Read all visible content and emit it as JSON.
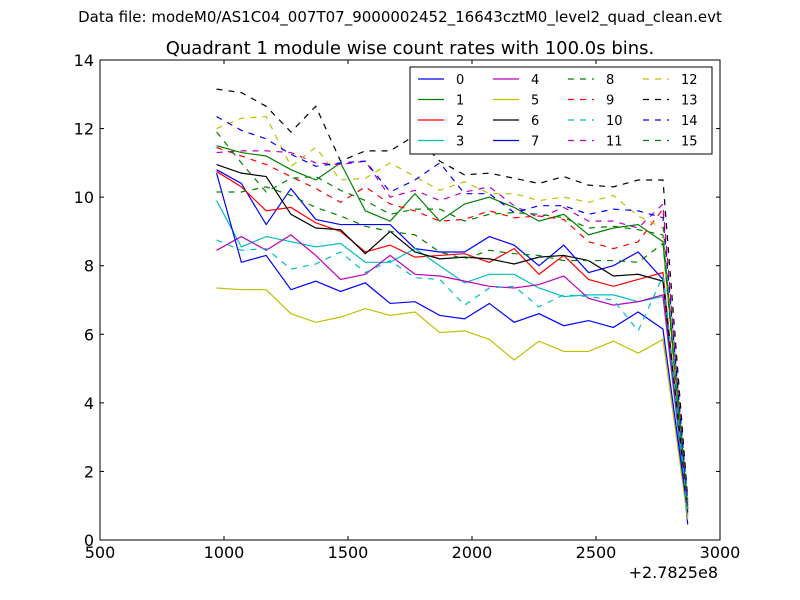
{
  "suptitle": "Data file: modeM0/AS1C04_007T07_9000002452_16643cztM0_level2_quad_clean.evt",
  "chart_data": {
    "type": "line",
    "title": "Quadrant 1 module wise count rates with 100.0s bins.",
    "xlabel": "",
    "ylabel": "",
    "offset_label": "+2.7825e8",
    "xlim": [
      500,
      3000
    ],
    "ylim": [
      0,
      14
    ],
    "xticks": [
      500,
      1000,
      1500,
      2000,
      2500,
      3000
    ],
    "yticks": [
      0,
      2,
      4,
      6,
      8,
      10,
      12,
      14
    ],
    "legend_position": "top-right",
    "legend_columns": 4,
    "x": [
      970,
      1070,
      1170,
      1270,
      1370,
      1470,
      1570,
      1670,
      1770,
      1870,
      1970,
      2070,
      2170,
      2270,
      2370,
      2470,
      2570,
      2670,
      2770,
      2870
    ],
    "series": [
      {
        "name": "0",
        "color": "#0000ff",
        "dash": "solid",
        "values": [
          10.8,
          10.4,
          9.2,
          10.25,
          9.35,
          9.2,
          9.2,
          9.2,
          8.5,
          8.4,
          8.4,
          8.85,
          8.6,
          8.0,
          8.6,
          7.8,
          8.0,
          8.4,
          7.6,
          0.45
        ]
      },
      {
        "name": "1",
        "color": "#008000",
        "dash": "solid",
        "values": [
          11.5,
          11.3,
          11.2,
          10.8,
          10.5,
          11.0,
          9.6,
          9.3,
          10.1,
          9.3,
          9.8,
          10.0,
          9.7,
          9.3,
          9.5,
          8.9,
          9.1,
          9.2,
          8.7,
          0.9
        ]
      },
      {
        "name": "2",
        "color": "#ff0000",
        "dash": "solid",
        "values": [
          10.75,
          10.3,
          9.6,
          9.7,
          9.25,
          9.0,
          8.4,
          8.6,
          8.25,
          8.3,
          8.35,
          8.1,
          8.5,
          7.75,
          8.3,
          7.6,
          7.4,
          7.6,
          7.8,
          0.8
        ]
      },
      {
        "name": "3",
        "color": "#00bfbf",
        "dash": "solid",
        "values": [
          9.9,
          8.55,
          8.85,
          8.7,
          8.55,
          8.65,
          8.1,
          8.1,
          8.5,
          8.0,
          7.5,
          7.75,
          7.75,
          7.35,
          7.1,
          7.15,
          7.15,
          6.95,
          7.1,
          0.7
        ]
      },
      {
        "name": "4",
        "color": "#bf00bf",
        "dash": "solid",
        "values": [
          8.45,
          8.85,
          8.45,
          8.9,
          8.3,
          7.6,
          7.75,
          8.3,
          7.75,
          7.7,
          7.55,
          7.4,
          7.35,
          7.45,
          7.7,
          7.05,
          6.85,
          6.95,
          7.15,
          0.9
        ]
      },
      {
        "name": "5",
        "color": "#bfbf00",
        "dash": "solid",
        "values": [
          7.35,
          7.3,
          7.3,
          6.6,
          6.35,
          6.5,
          6.75,
          6.55,
          6.65,
          6.05,
          6.1,
          5.85,
          5.25,
          5.8,
          5.5,
          5.5,
          5.8,
          5.45,
          5.85,
          0.6
        ]
      },
      {
        "name": "6",
        "color": "#000000",
        "dash": "solid",
        "values": [
          10.95,
          10.7,
          10.6,
          9.5,
          9.1,
          9.05,
          8.35,
          9.0,
          8.4,
          8.2,
          8.25,
          8.2,
          8.05,
          8.25,
          8.3,
          8.15,
          7.7,
          7.75,
          7.55,
          1.0
        ]
      },
      {
        "name": "7",
        "color": "#0000ff",
        "dash": "solid",
        "values": [
          10.7,
          8.1,
          8.3,
          7.3,
          7.55,
          7.25,
          7.5,
          6.9,
          6.95,
          6.55,
          6.45,
          6.9,
          6.35,
          6.6,
          6.25,
          6.4,
          6.2,
          6.65,
          6.15,
          0.8
        ]
      },
      {
        "name": "8",
        "color": "#008000",
        "dash": "dashed",
        "values": [
          10.15,
          10.15,
          10.3,
          10.05,
          9.7,
          9.45,
          9.15,
          9.0,
          8.9,
          8.4,
          8.2,
          8.45,
          8.35,
          8.3,
          8.15,
          8.15,
          8.15,
          8.1,
          8.65,
          0.7
        ]
      },
      {
        "name": "9",
        "color": "#ff0000",
        "dash": "dashed",
        "values": [
          11.45,
          11.2,
          10.95,
          10.6,
          10.25,
          9.85,
          10.3,
          9.8,
          9.6,
          9.3,
          9.35,
          9.6,
          9.4,
          9.45,
          9.35,
          8.7,
          8.5,
          8.7,
          9.65,
          1.1
        ]
      },
      {
        "name": "10",
        "color": "#00bfbf",
        "dash": "dashed",
        "values": [
          8.75,
          8.45,
          8.5,
          7.9,
          8.05,
          8.4,
          7.8,
          8.15,
          7.65,
          7.6,
          6.85,
          7.35,
          7.4,
          6.8,
          7.15,
          7.1,
          7.0,
          6.1,
          7.7,
          0.8
        ]
      },
      {
        "name": "11",
        "color": "#bf00bf",
        "dash": "dashed",
        "values": [
          11.3,
          11.35,
          11.35,
          11.3,
          11.0,
          10.95,
          11.05,
          10.0,
          10.2,
          9.9,
          10.15,
          10.3,
          9.75,
          9.4,
          9.7,
          9.3,
          9.3,
          9.1,
          9.8,
          0.95
        ]
      },
      {
        "name": "12",
        "color": "#bfbf00",
        "dash": "dashed",
        "values": [
          12.0,
          12.3,
          12.35,
          10.9,
          11.45,
          10.5,
          10.55,
          11.0,
          10.6,
          10.2,
          10.45,
          10.1,
          10.1,
          9.9,
          10.0,
          9.85,
          10.05,
          9.45,
          9.1,
          1.1
        ]
      },
      {
        "name": "13",
        "color": "#000000",
        "dash": "dashed",
        "values": [
          13.15,
          13.05,
          12.65,
          11.9,
          12.65,
          11.05,
          11.35,
          11.35,
          11.8,
          11.05,
          10.65,
          10.7,
          10.55,
          10.4,
          10.6,
          10.35,
          10.3,
          10.5,
          10.5,
          1.2
        ]
      },
      {
        "name": "14",
        "color": "#0000ff",
        "dash": "dashed",
        "values": [
          12.35,
          11.95,
          11.7,
          11.25,
          10.9,
          11.0,
          11.05,
          10.15,
          10.5,
          11.0,
          10.1,
          10.1,
          9.55,
          9.75,
          9.75,
          9.5,
          9.65,
          9.6,
          9.4,
          1.1
        ]
      },
      {
        "name": "15",
        "color": "#008000",
        "dash": "dashed",
        "values": [
          11.9,
          11.0,
          10.15,
          10.55,
          10.6,
          10.2,
          9.9,
          9.5,
          9.65,
          9.65,
          9.3,
          9.5,
          9.55,
          9.5,
          9.4,
          9.1,
          9.15,
          9.05,
          8.9,
          1.0
        ]
      }
    ]
  }
}
